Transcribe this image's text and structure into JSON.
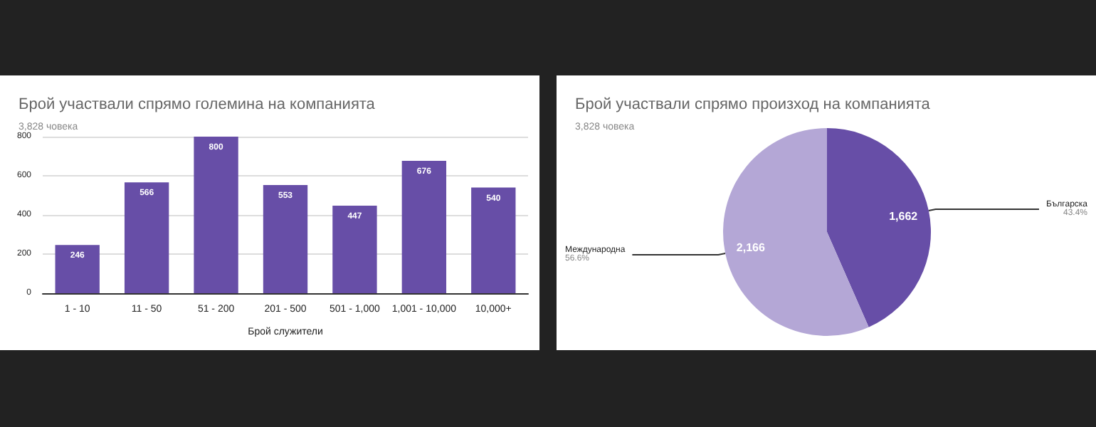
{
  "chart_data": [
    {
      "type": "bar",
      "title": "Брой участвали спрямо големина на компанията",
      "subtitle": "3,828 човека",
      "xlabel": "Брой служители",
      "categories": [
        "1 - 10",
        "11 - 50",
        "51 - 200",
        "201 - 500",
        "501 - 1,000",
        "1,001 - 10,000",
        "10,000+"
      ],
      "values": [
        246,
        566,
        800,
        553,
        447,
        676,
        540
      ],
      "color": "#674ea7",
      "ylim": [
        0,
        800
      ],
      "yticks": [
        0,
        200,
        400,
        600,
        800
      ],
      "grid": "y",
      "data_labels": true,
      "legend": false
    },
    {
      "type": "pie",
      "title": "Брой участвали спрямо произход на компанията",
      "subtitle": "3,828 човека",
      "categories": [
        "Българска",
        "Международна"
      ],
      "values": [
        1662,
        2166
      ],
      "colors": [
        "#674ea7",
        "#b4a7d6"
      ],
      "value_labels": [
        "1,662",
        "2,166"
      ],
      "annotations": [
        "43.4%",
        "56.6%"
      ],
      "legend": false
    }
  ]
}
